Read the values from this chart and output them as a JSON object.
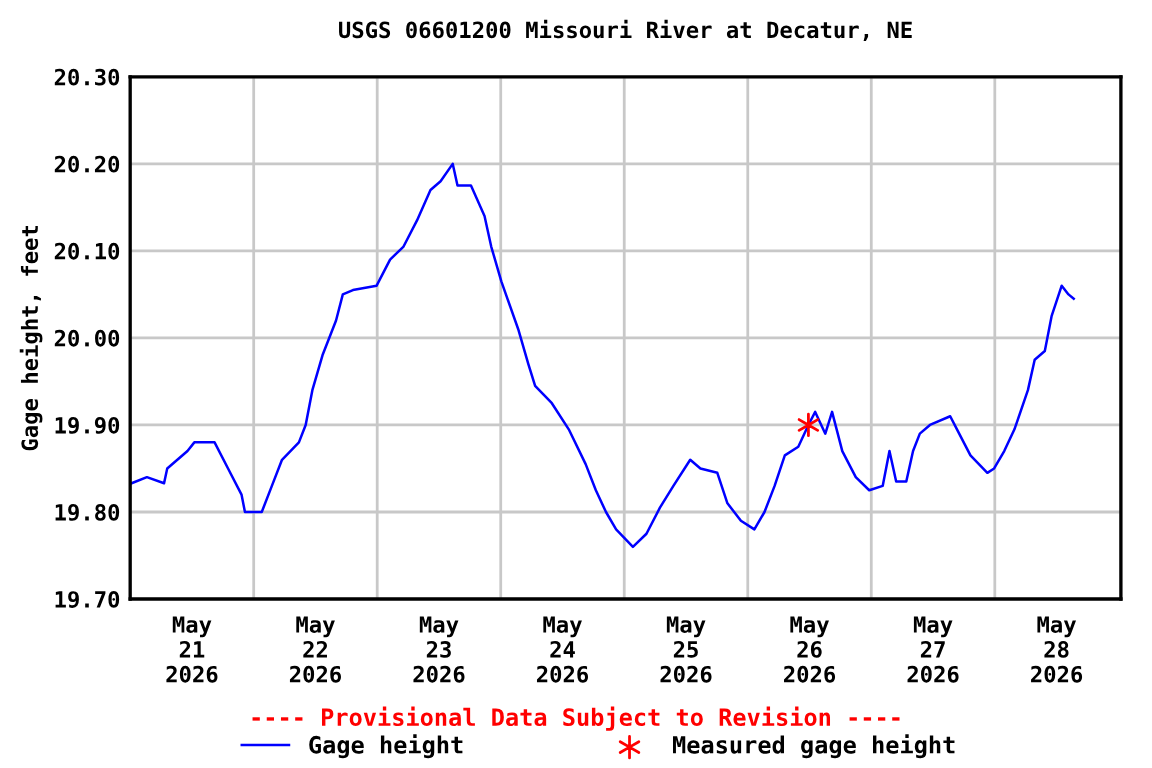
{
  "chart_data": {
    "type": "line",
    "title": "USGS 06601200 Missouri River at Decatur, NE",
    "ylabel": "Gage height, feet",
    "annotations": [
      "---- Provisional Data Subject to Revision ----"
    ],
    "xlim": [
      "2026-05-21T00:00",
      "2026-05-29T00:30"
    ],
    "xticks": [
      {
        "value": "2026-05-21T12:00",
        "label": "May\n21\n2026"
      },
      {
        "value": "2026-05-22T00:00",
        "label": null
      },
      {
        "value": "2026-05-22T12:00",
        "label": "May\n22\n2026"
      },
      {
        "value": "2026-05-23T00:00",
        "label": null
      },
      {
        "value": "2026-05-23T12:00",
        "label": "May\n23\n2026"
      },
      {
        "value": "2026-05-24T00:00",
        "label": null
      },
      {
        "value": "2026-05-24T12:00",
        "label": "May\n24\n2026"
      },
      {
        "value": "2026-05-25T00:00",
        "label": null
      },
      {
        "value": "2026-05-25T12:00",
        "label": "May\n25\n2026"
      },
      {
        "value": "2026-05-26T00:00",
        "label": null
      },
      {
        "value": "2026-05-26T12:00",
        "label": "May\n26\n2026"
      },
      {
        "value": "2026-05-27T00:00",
        "label": null
      },
      {
        "value": "2026-05-27T12:00",
        "label": "May\n27\n2026"
      },
      {
        "value": "2026-05-28T00:00",
        "label": null
      },
      {
        "value": "2026-05-28T12:00",
        "label": "May\n28\n2026"
      }
    ],
    "ylim": [
      19.7,
      20.3
    ],
    "yticks": [
      {
        "value": 19.7,
        "label": "19.70"
      },
      {
        "value": 19.8,
        "label": "19.80"
      },
      {
        "value": 19.9,
        "label": "19.90"
      },
      {
        "value": 20.0,
        "label": "20.00"
      },
      {
        "value": 20.1,
        "label": "20.10"
      },
      {
        "value": 20.2,
        "label": "20.20"
      },
      {
        "value": 20.3,
        "label": "20.30"
      }
    ],
    "grid": true,
    "legend": "bottom",
    "series": [
      {
        "name": "Gage height",
        "color": "#0000ff",
        "marker": "none",
        "x": [
          "2026-05-21T00:16",
          "2026-05-21T03:15",
          "2026-05-21T06:35",
          "2026-05-21T07:12",
          "2026-05-21T11:08",
          "2026-05-21T12:28",
          "2026-05-21T16:24",
          "2026-05-21T19:01",
          "2026-05-21T21:38",
          "2026-05-21T22:18",
          "2026-05-22T01:34",
          "2026-05-22T03:32",
          "2026-05-22T05:30",
          "2026-05-22T08:47",
          "2026-05-22T10:06",
          "2026-05-22T11:24",
          "2026-05-22T13:22",
          "2026-05-22T16:00",
          "2026-05-22T17:19",
          "2026-05-22T19:17",
          "2026-05-22T23:53",
          "2026-05-23T02:30",
          "2026-05-23T05:07",
          "2026-05-23T07:44",
          "2026-05-23T10:21",
          "2026-05-23T12:19",
          "2026-05-23T14:40",
          "2026-05-23T15:36",
          "2026-05-23T18:13",
          "2026-05-23T20:51",
          "2026-05-23T22:09",
          "2026-05-24T00:07",
          "2026-05-24T03:24",
          "2026-05-24T05:22",
          "2026-05-24T06:41",
          "2026-05-24T09:56",
          "2026-05-24T13:13",
          "2026-05-24T16:30",
          "2026-05-24T18:29",
          "2026-05-24T20:27",
          "2026-05-24T22:25",
          "2026-05-25T01:41",
          "2026-05-25T04:19",
          "2026-05-25T06:56",
          "2026-05-25T09:33",
          "2026-05-25T12:49",
          "2026-05-25T14:48",
          "2026-05-25T18:05",
          "2026-05-25T20:03",
          "2026-05-25T22:40",
          "2026-05-26T01:17",
          "2026-05-26T03:15",
          "2026-05-26T05:13",
          "2026-05-26T07:12",
          "2026-05-26T09:49",
          "2026-05-26T11:47",
          "2026-05-26T13:06",
          "2026-05-26T15:04",
          "2026-05-26T16:23",
          "2026-05-26T18:22",
          "2026-05-26T20:59",
          "2026-05-26T23:36",
          "2026-05-27T02:13",
          "2026-05-27T03:32",
          "2026-05-27T04:50",
          "2026-05-27T06:48",
          "2026-05-27T08:07",
          "2026-05-27T09:26",
          "2026-05-27T11:24",
          "2026-05-27T15:20",
          "2026-05-27T16:39",
          "2026-05-27T19:16",
          "2026-05-27T22:33",
          "2026-05-27T23:52",
          "2026-05-28T01:50",
          "2026-05-28T03:49",
          "2026-05-28T06:26",
          "2026-05-28T07:45",
          "2026-05-28T09:43",
          "2026-05-28T11:02",
          "2026-05-28T13:00",
          "2026-05-28T14:19",
          "2026-05-28T15:20"
        ],
        "values": [
          19.833,
          19.84,
          19.833,
          19.85,
          19.87,
          19.88,
          19.88,
          19.85,
          19.82,
          19.8,
          19.8,
          19.83,
          19.86,
          19.88,
          19.9,
          19.94,
          19.98,
          20.02,
          20.05,
          20.055,
          20.06,
          20.09,
          20.105,
          20.135,
          20.17,
          20.18,
          20.2,
          20.175,
          20.175,
          20.14,
          20.105,
          20.065,
          20.01,
          19.97,
          19.945,
          19.925,
          19.895,
          19.855,
          19.825,
          19.8,
          19.78,
          19.76,
          19.775,
          19.805,
          19.83,
          19.86,
          19.85,
          19.845,
          19.81,
          19.79,
          19.78,
          19.8,
          19.83,
          19.865,
          19.875,
          19.9,
          19.915,
          19.89,
          19.915,
          19.87,
          19.84,
          19.825,
          19.83,
          19.87,
          19.835,
          19.835,
          19.87,
          19.89,
          19.9,
          19.91,
          19.895,
          19.865,
          19.845,
          19.85,
          19.87,
          19.895,
          19.94,
          19.975,
          19.985,
          20.025,
          20.06,
          20.05,
          20.045
        ]
      },
      {
        "name": "Measured gage height",
        "type": "scatter",
        "color": "#ff0000",
        "marker": "cross",
        "x": [
          "2026-05-26T11:47"
        ],
        "values": [
          19.9
        ]
      }
    ]
  }
}
